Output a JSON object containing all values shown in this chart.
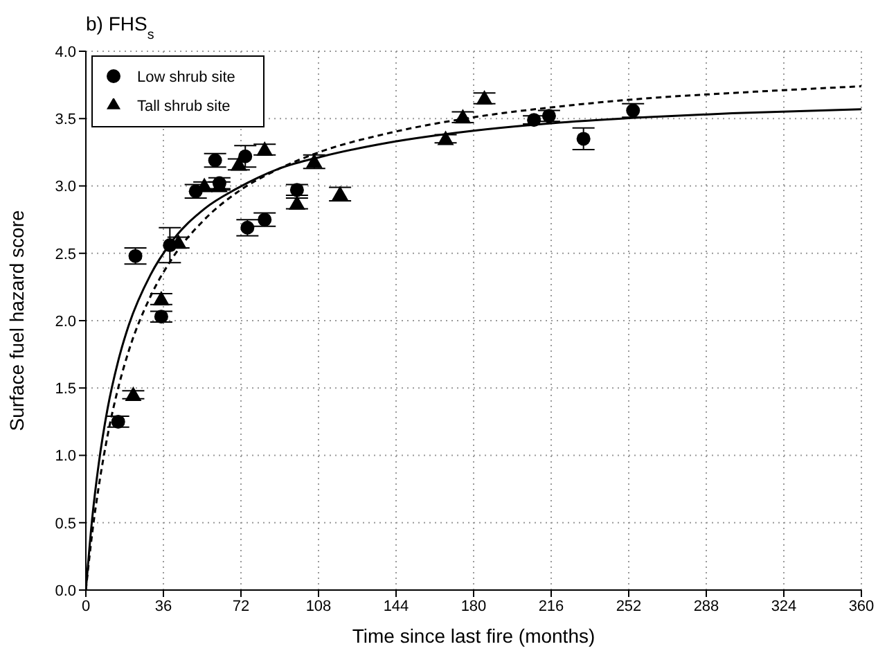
{
  "chart_data": {
    "type": "scatter",
    "title": "b) FHS$_{s}$",
    "xlabel": "Time since last fire (months)",
    "ylabel": "Surface fuel hazard score",
    "xlim": [
      0,
      360
    ],
    "xticks": [
      0,
      36,
      72,
      108,
      144,
      180,
      216,
      252,
      288,
      324,
      360
    ],
    "ylim": [
      0,
      4
    ],
    "yticks": [
      {
        "value": 0,
        "label": "0.0"
      },
      {
        "value": 0.5,
        "label": "0.5"
      },
      {
        "value": 1,
        "label": "1.0"
      },
      {
        "value": 1.5,
        "label": "1.5"
      },
      {
        "value": 2,
        "label": "2.0"
      },
      {
        "value": 2.5,
        "label": "2.5"
      },
      {
        "value": 3,
        "label": "3.0"
      },
      {
        "value": 3.5,
        "label": "3.5"
      },
      {
        "value": 4,
        "label": "4.0"
      }
    ],
    "grid": true,
    "legend": "top left",
    "series": [
      {
        "name": "Low shrub site",
        "type": "scatter",
        "color": "#000000",
        "marker": "circle",
        "line_style": "solid",
        "x": [
          15,
          23,
          35,
          39,
          51,
          60,
          62,
          74,
          75,
          83,
          98,
          208,
          215,
          231,
          254
        ],
        "values": [
          1.25,
          2.48,
          2.03,
          2.56,
          2.96,
          3.19,
          3.02,
          3.22,
          2.69,
          2.75,
          2.97,
          3.49,
          3.52,
          3.35,
          3.56
        ],
        "errors": [
          0.04,
          0.06,
          0.04,
          0.13,
          0.05,
          0.05,
          0.04,
          0.08,
          0.06,
          0.05,
          0.04,
          0.03,
          0.04,
          0.08,
          0.05
        ]
      },
      {
        "name": "Tall shrub site",
        "type": "scatter",
        "color": "#000000",
        "marker": "triangle",
        "line_style": "dashed",
        "x": [
          22,
          35,
          43,
          55,
          62,
          71,
          83,
          98,
          106,
          118,
          167,
          175,
          185
        ],
        "values": [
          1.45,
          2.16,
          2.58,
          3.0,
          3.0,
          3.16,
          3.27,
          2.87,
          3.18,
          2.94,
          3.35,
          3.51,
          3.65
        ],
        "errors": [
          0.03,
          0.04,
          0.04,
          0.03,
          0.03,
          0.04,
          0.04,
          0.04,
          0.05,
          0.05,
          0.03,
          0.04,
          0.04
        ]
      },
      {
        "type": "line",
        "color": "#000000",
        "line_style": "solid",
        "x": [
          0,
          3,
          6,
          10,
          15,
          20,
          30,
          40,
          55,
          70,
          90,
          110,
          140,
          180,
          220,
          260,
          300,
          360
        ],
        "values": [
          0,
          0.54,
          0.94,
          1.34,
          1.7,
          1.97,
          2.34,
          2.59,
          2.83,
          2.98,
          3.13,
          3.22,
          3.32,
          3.41,
          3.47,
          3.51,
          3.54,
          3.57
        ]
      },
      {
        "type": "line",
        "color": "#000000",
        "line_style": "dashed",
        "x": [
          0,
          3,
          6,
          10,
          15,
          20,
          30,
          40,
          55,
          70,
          90,
          110,
          140,
          180,
          220,
          260,
          300,
          360
        ],
        "values": [
          0,
          0.43,
          0.77,
          1.14,
          1.5,
          1.78,
          2.18,
          2.46,
          2.75,
          2.95,
          3.13,
          3.26,
          3.39,
          3.51,
          3.59,
          3.65,
          3.69,
          3.74
        ]
      }
    ]
  }
}
